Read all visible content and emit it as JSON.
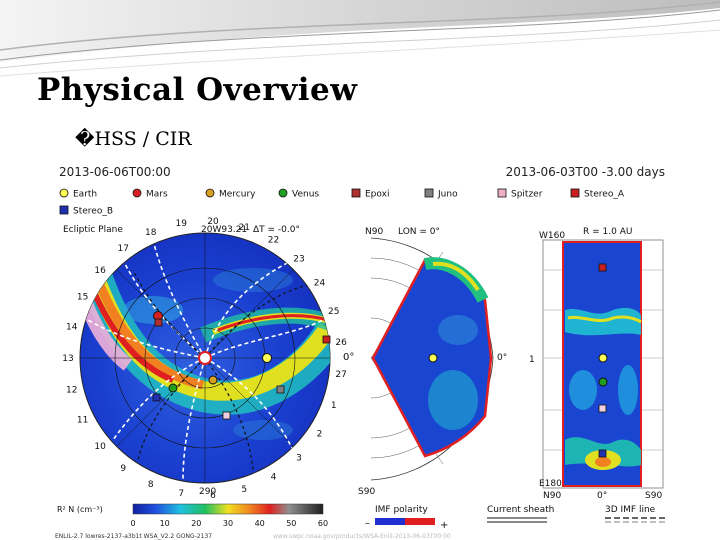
{
  "slide": {
    "title": "Physical Overview",
    "bullet_marker": "�",
    "bullet_text": "HSS / CIR"
  },
  "figure": {
    "time_left": "2013-06-06T00:00",
    "time_right": "2013-06-03T00 -3.00 days",
    "legend": [
      {
        "label": "Earth",
        "color": "#ffff55",
        "shape": "circle"
      },
      {
        "label": "Mars",
        "color": "#d82020",
        "shape": "circle"
      },
      {
        "label": "Mercury",
        "color": "#d8a020",
        "shape": "circle"
      },
      {
        "label": "Venus",
        "color": "#20a020",
        "shape": "circle"
      },
      {
        "label": "Epoxi",
        "color": "#b03030",
        "shape": "square"
      },
      {
        "label": "Juno",
        "color": "#808080",
        "shape": "square"
      },
      {
        "label": "Spitzer",
        "color": "#f0b0c8",
        "shape": "square"
      },
      {
        "label": "Stereo_A",
        "color": "#c82020",
        "shape": "square"
      },
      {
        "label": "Stereo_B",
        "color": "#2030b0",
        "shape": "square"
      }
    ],
    "ecliptic_label": "Ecliptic Plane",
    "ecliptic_date": "20W93.21",
    "ecliptic_delta": "ΔT = -0.0°",
    "carrington_numbers": [
      "19",
      "20",
      "21",
      "22",
      "23",
      "24",
      "25",
      "26",
      "27",
      "1",
      "2",
      "3",
      "4",
      "5",
      "6",
      "7",
      "8",
      "9",
      "10",
      "11",
      "12",
      "13",
      "14",
      "15",
      "16",
      "17",
      "18"
    ],
    "zero_label": "0°",
    "bottom_angle": "290",
    "meridional_top_left": "N90",
    "meridional_lon": "LON = 0°",
    "meridional_bottom_left": "S90",
    "meridional_right": "0°",
    "radial_top_left": "W160",
    "radial_r": "R = 1.0 AU",
    "radial_bottom_left": "E180",
    "radial_bottom_labels": [
      "N90",
      "0°",
      "S90"
    ],
    "radial_mid": "1",
    "colorbar_label": "R² N (cm⁻³)",
    "colorbar_ticks": [
      "0",
      "10",
      "20",
      "30",
      "40",
      "50",
      "60"
    ],
    "imf_label": "IMF polarity",
    "imf_minus": "–",
    "imf_plus": "+",
    "sheath_label": "Current sheath",
    "line_label": "3D IMF line",
    "footer_left": "ENLIL-2.7  lowres-2137-a3b1t  WSA_V2.2  GONG-2137",
    "footer_right": "www.swpc.noaa.gov/products/WSA-Enlil-2013-06-03T00:00"
  },
  "colors": {
    "background_blue": "#1535c8",
    "cmap_low": "#2040d0",
    "cmap_mid": "#20d0c0",
    "cmap_high": "#f0e020",
    "cmap_peak": "#e02020",
    "boundary": "#e02020"
  }
}
